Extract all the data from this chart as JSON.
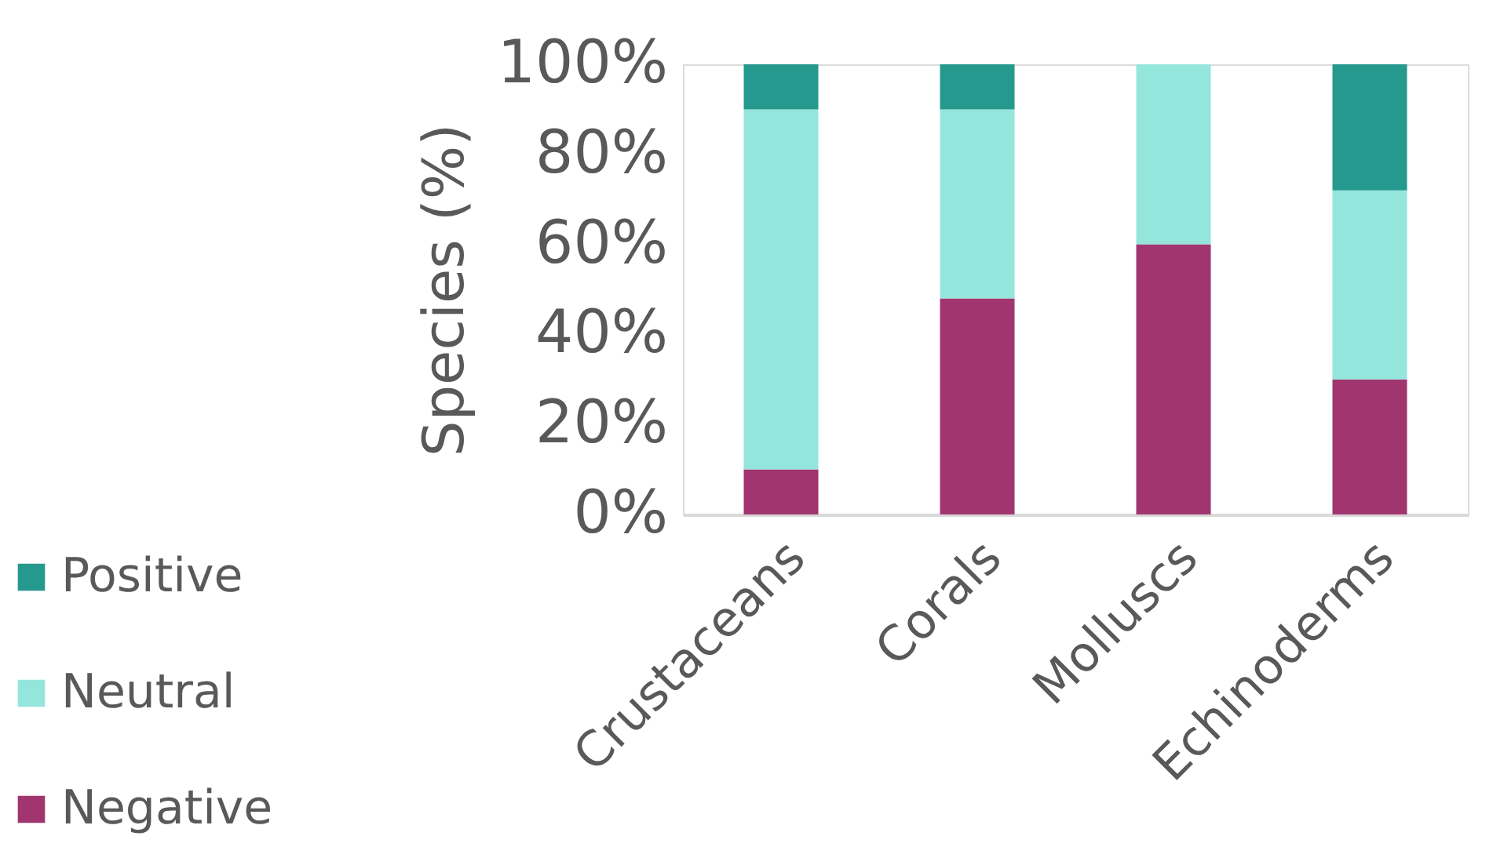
{
  "chart_data": {
    "type": "bar",
    "stacked": true,
    "ylabel": "Species (%)",
    "categories": [
      "Crustaceans",
      "Corals",
      "Molluscs",
      "Echinoderms"
    ],
    "series": [
      {
        "name": "Negative",
        "color": "#a03570",
        "values": [
          10,
          48,
          60,
          30
        ]
      },
      {
        "name": "Neutral",
        "color": "#94e6dc",
        "values": [
          80,
          42,
          40,
          42
        ]
      },
      {
        "name": "Positive",
        "color": "#26998f",
        "values": [
          10,
          10,
          0,
          28
        ]
      }
    ],
    "ylim": [
      0,
      100
    ],
    "yticks": [
      {
        "value": 0,
        "label": "0%"
      },
      {
        "value": 20,
        "label": "20%"
      },
      {
        "value": 40,
        "label": "40%"
      },
      {
        "value": 60,
        "label": "60%"
      },
      {
        "value": 80,
        "label": "80%"
      },
      {
        "value": 100,
        "label": "100%"
      }
    ],
    "grid": false,
    "legend": "bottom left"
  }
}
